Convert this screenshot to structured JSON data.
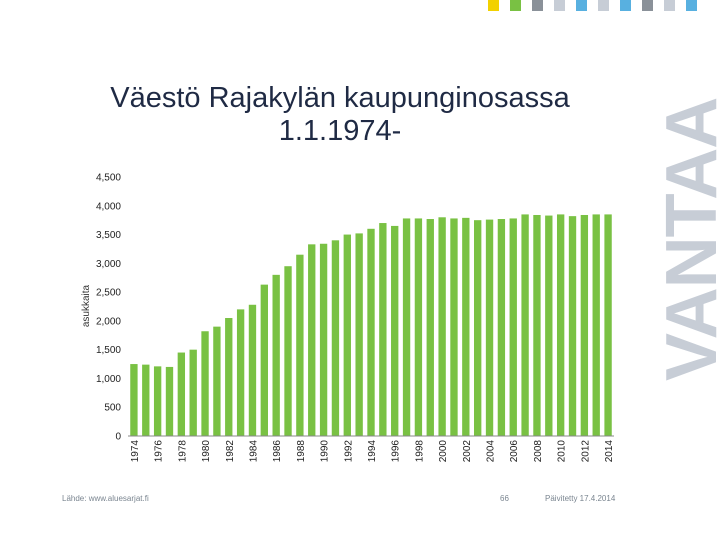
{
  "title_line1": "Väestö Rajakylän kaupunginosassa",
  "title_line2": "1.1.1974-",
  "brand": "VANTAA",
  "footer": {
    "source": "Lähde: www.aluesarjat.fi",
    "page": "66",
    "updated": "Päivitetty 17.4.2014"
  },
  "colors": {
    "bar": "#79c143",
    "title": "#1f2a44",
    "brand": "#c7cdd6"
  },
  "chart_data": {
    "type": "bar",
    "ylabel": "asukkaita",
    "ylim": [
      0,
      4500
    ],
    "yticks": [
      0,
      500,
      1000,
      1500,
      2000,
      2500,
      3000,
      3500,
      4000,
      4500
    ],
    "ytick_labels": [
      "0",
      "500",
      "1,000",
      "1,500",
      "2,000",
      "2,500",
      "3,000",
      "3,500",
      "4,000",
      "4,500"
    ],
    "xtick_labels": [
      "1974",
      "1976",
      "1978",
      "1980",
      "1982",
      "1984",
      "1986",
      "1988",
      "1990",
      "1992",
      "1994",
      "1996",
      "1998",
      "2000",
      "2002",
      "2004",
      "2006",
      "2008",
      "2010",
      "2012",
      "2014"
    ],
    "categories": [
      1974,
      1975,
      1976,
      1977,
      1978,
      1979,
      1980,
      1981,
      1982,
      1983,
      1984,
      1985,
      1986,
      1987,
      1988,
      1989,
      1990,
      1991,
      1992,
      1993,
      1994,
      1995,
      1996,
      1997,
      1998,
      1999,
      2000,
      2001,
      2002,
      2003,
      2004,
      2005,
      2006,
      2007,
      2008,
      2009,
      2010,
      2011,
      2012,
      2013,
      2014
    ],
    "values": [
      1250,
      1240,
      1210,
      1200,
      1450,
      1500,
      1820,
      1900,
      2050,
      2200,
      2280,
      2630,
      2800,
      2950,
      3150,
      3330,
      3340,
      3400,
      3500,
      3520,
      3600,
      3700,
      3650,
      3780,
      3780,
      3770,
      3800,
      3780,
      3790,
      3750,
      3760,
      3770,
      3780,
      3850,
      3840,
      3830,
      3850,
      3820,
      3840,
      3850,
      3850
    ],
    "grid": false,
    "legend": "none"
  }
}
